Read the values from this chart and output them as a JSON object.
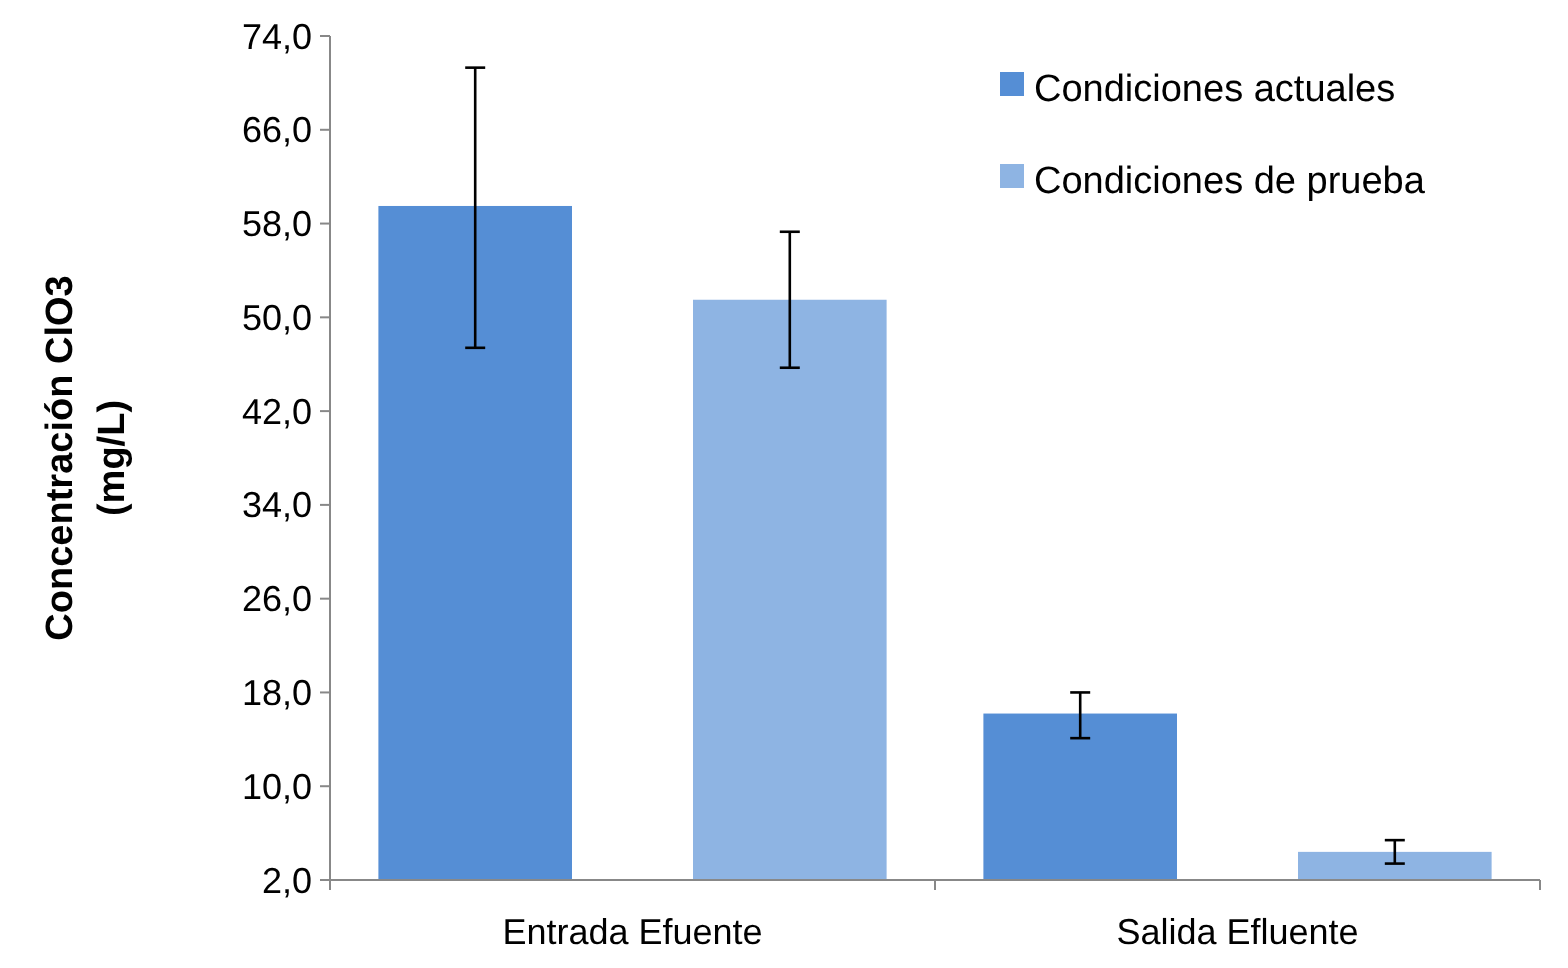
{
  "chart_data": {
    "type": "bar",
    "ylabel": "Concentración ClO3 (mg/L)",
    "categories": [
      "Entrada Efuente",
      "Salida Efluente"
    ],
    "series": [
      {
        "name": "Condiciones actuales",
        "color": "#558ed5",
        "values": [
          59.5,
          16.2
        ],
        "errors": [
          [
            47.4,
            71.3
          ],
          [
            14.1,
            18.0
          ]
        ]
      },
      {
        "name": "Condiciones de prueba",
        "color": "#8eb4e3",
        "values": [
          51.5,
          4.4
        ],
        "errors": [
          [
            45.7,
            57.3
          ],
          [
            3.4,
            5.4
          ]
        ]
      }
    ],
    "ylim": [
      2,
      74
    ],
    "yticks": [
      {
        "value": 2,
        "label": "2,0"
      },
      {
        "value": 10,
        "label": "10,0"
      },
      {
        "value": 18,
        "label": "18,0"
      },
      {
        "value": 26,
        "label": "26,0"
      },
      {
        "value": 34,
        "label": "34,0"
      },
      {
        "value": 42,
        "label": "42,0"
      },
      {
        "value": 50,
        "label": "50,0"
      },
      {
        "value": 58,
        "label": "58,0"
      },
      {
        "value": 66,
        "label": "66,0"
      },
      {
        "value": 74,
        "label": "74,0"
      }
    ],
    "grid": false,
    "legend": "top right"
  }
}
